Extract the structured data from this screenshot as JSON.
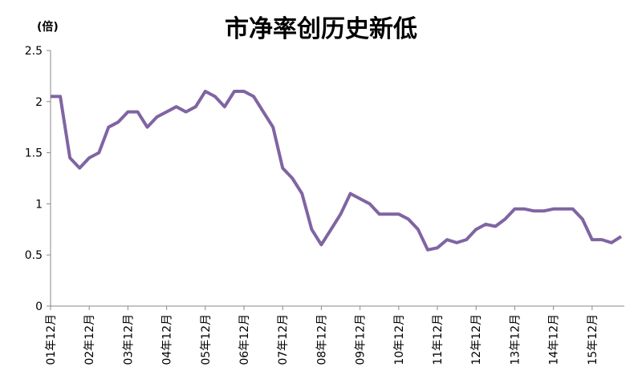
{
  "chart_data": {
    "type": "line",
    "title": "市净率创历史新低",
    "y_label": "(倍)",
    "categories": [
      "01年12月",
      null,
      null,
      null,
      "02年12月",
      null,
      null,
      null,
      "03年12月",
      null,
      null,
      null,
      "04年12月",
      null,
      null,
      null,
      "05年12月",
      null,
      null,
      null,
      "06年12月",
      null,
      null,
      null,
      "07年12月",
      null,
      null,
      null,
      "08年12月",
      null,
      null,
      null,
      "09年12月",
      null,
      null,
      null,
      "10年12月",
      null,
      null,
      null,
      "11年12月",
      null,
      null,
      null,
      "12年12月",
      null,
      null,
      null,
      "13年12月",
      null,
      null,
      null,
      "14年12月",
      null,
      null,
      null,
      "15年12月",
      null,
      null,
      null
    ],
    "series": [
      {
        "name": "市净率",
        "color": "#8064a2",
        "values": [
          2.05,
          2.05,
          1.45,
          1.35,
          1.45,
          1.5,
          1.75,
          1.8,
          1.9,
          1.9,
          1.75,
          1.85,
          1.9,
          1.95,
          1.9,
          1.95,
          2.1,
          2.05,
          1.95,
          2.1,
          2.1,
          2.05,
          1.9,
          1.75,
          1.35,
          1.25,
          1.1,
          0.75,
          0.6,
          0.75,
          0.9,
          1.1,
          1.05,
          1.0,
          0.9,
          0.9,
          0.9,
          0.85,
          0.75,
          0.55,
          0.57,
          0.65,
          0.62,
          0.65,
          0.75,
          0.8,
          0.78,
          0.85,
          0.95,
          0.95,
          0.93,
          0.93,
          0.95,
          0.95,
          0.95,
          0.85,
          0.65,
          0.65,
          0.62,
          0.68
        ]
      }
    ],
    "ylim": [
      0,
      2.5
    ],
    "yticks": [
      0,
      0.5,
      1,
      1.5,
      2,
      2.5
    ],
    "grid": false
  }
}
